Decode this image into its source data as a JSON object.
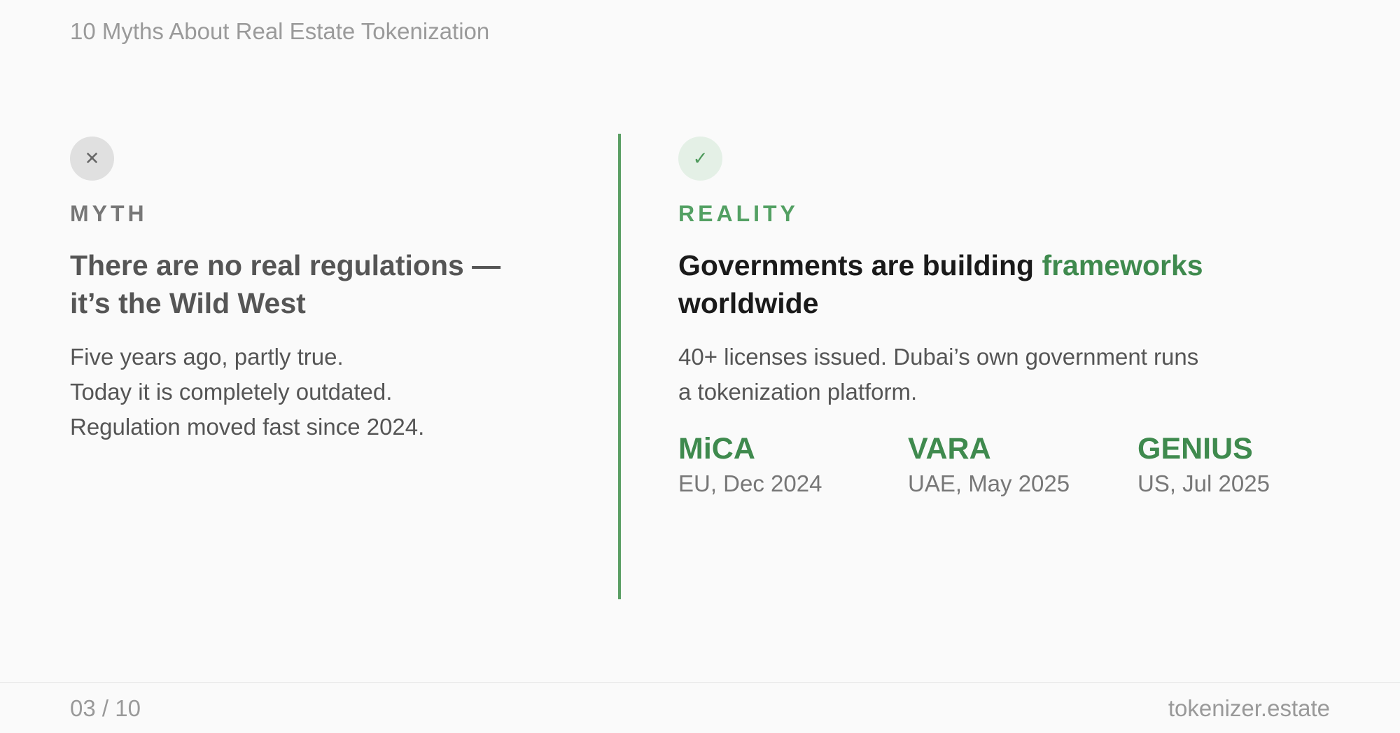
{
  "deck_title": "10 Myths About Real Estate Tokenization",
  "myth": {
    "icon": "x-icon",
    "icon_glyph": "✕",
    "label": "MYTH",
    "headline": [
      "There are no real regulations —",
      "it’s the Wild West"
    ],
    "body": [
      "Five years ago, partly true.",
      "Today it is completely outdated.",
      "Regulation moved fast since 2024."
    ]
  },
  "reality": {
    "icon": "check-icon",
    "icon_glyph": "✓",
    "label": "REALITY",
    "headline_pre": "Governments are building ",
    "headline_highlight": "frameworks",
    "headline_post": "worldwide",
    "body": [
      "40+ licenses issued. Dubai’s own government runs",
      "a tokenization platform."
    ],
    "stats": [
      {
        "name": "MiCA",
        "detail": "EU, Dec 2024"
      },
      {
        "name": "VARA",
        "detail": "UAE, May 2025"
      },
      {
        "name": "GENIUS",
        "detail": "US, Jul 2025"
      }
    ]
  },
  "footer": {
    "page": "03 / 10",
    "site": "tokenizer.estate"
  },
  "colors": {
    "accent_green": "#3f8a4e",
    "divider": "#5a9e64",
    "background": "#fafafa"
  }
}
